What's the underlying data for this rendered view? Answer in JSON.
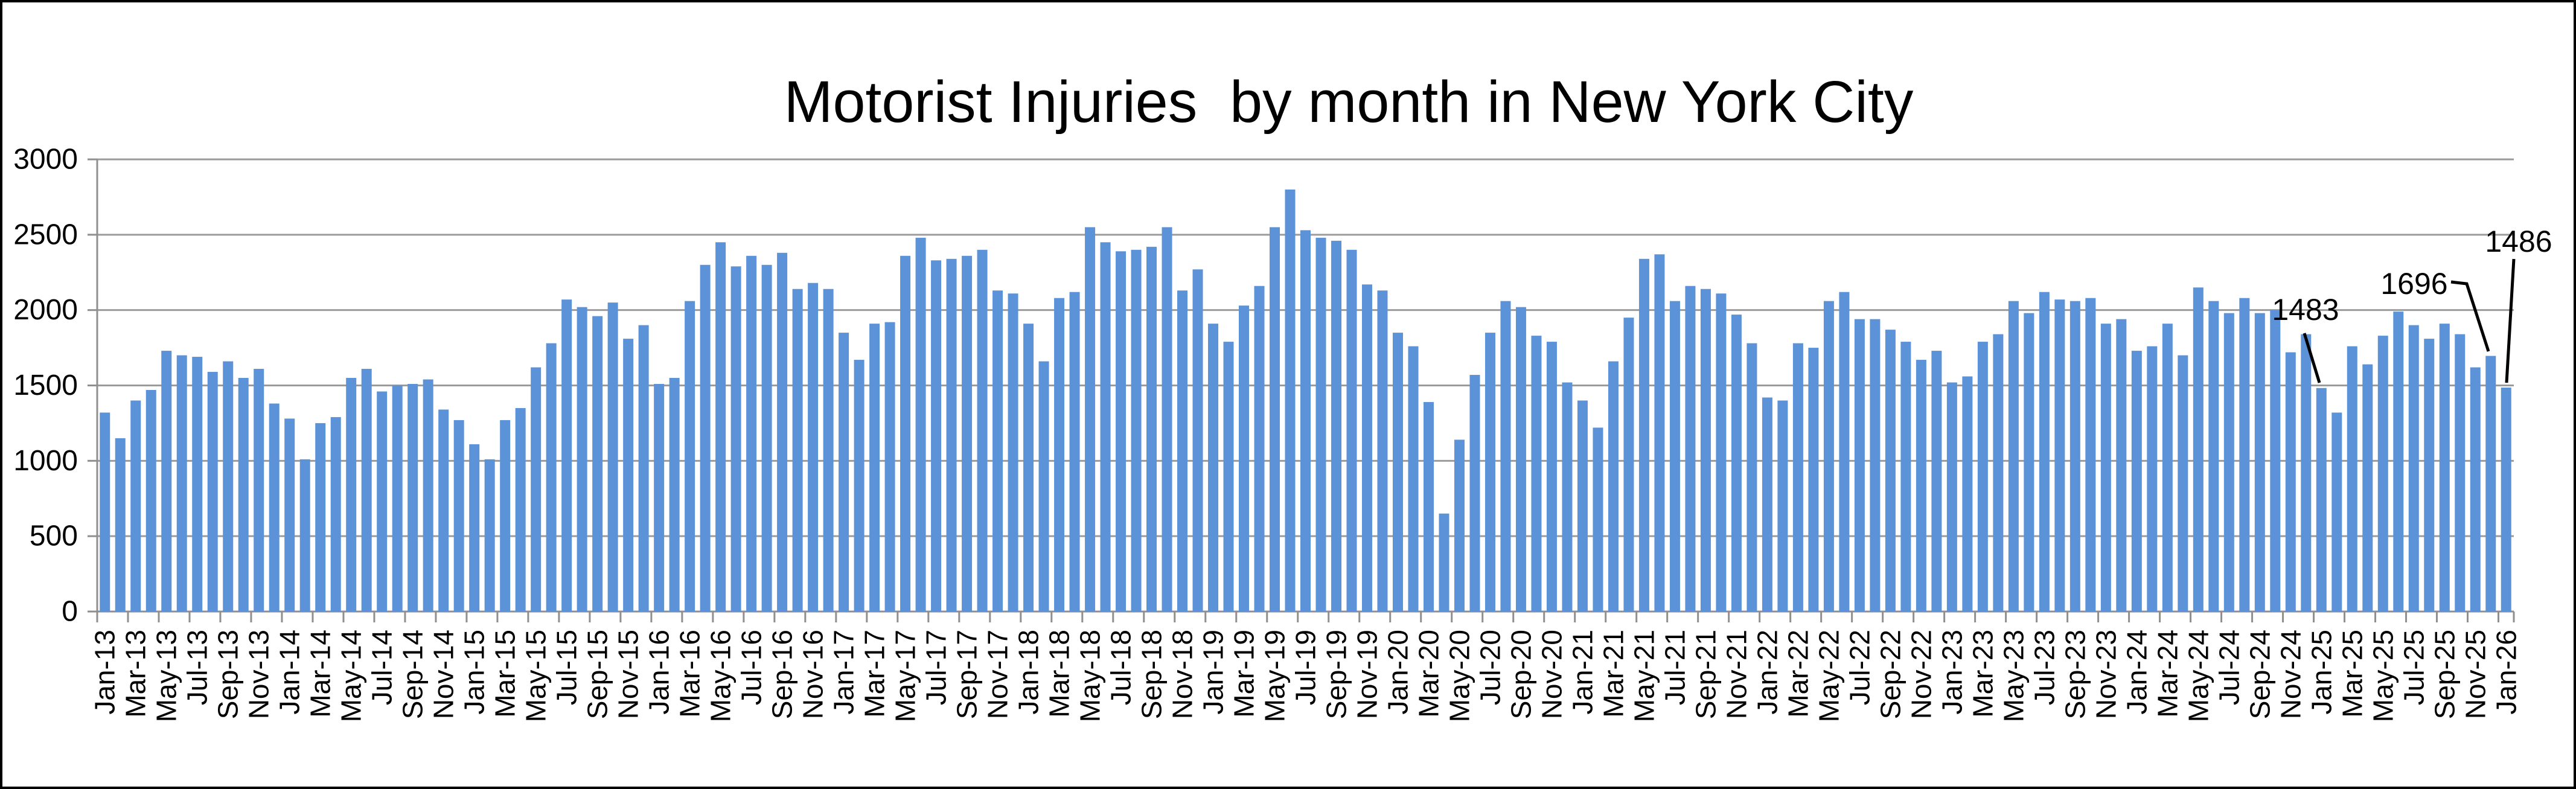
{
  "page": {
    "background": "#ffffff",
    "border_color": "#000000"
  },
  "chart_data": {
    "type": "bar",
    "title": "Motorist Injuries  by month in New York City",
    "xlabel": "",
    "ylabel": "",
    "ylim": [
      0,
      3000
    ],
    "ytick_step": 500,
    "y_tick_labels": [
      "0",
      "500",
      "1000",
      "1500",
      "2000",
      "2500",
      "3000"
    ],
    "x_label_every": 2,
    "grid": "horizontal-major",
    "legend": "none",
    "colors": {
      "bar": "#5C92D8",
      "gridline": "#9B9B9B",
      "axis": "#8F8F8F",
      "text": "#000000",
      "annotation_line": "#000000"
    },
    "categories": [
      "Jan-13",
      "Feb-13",
      "Mar-13",
      "Apr-13",
      "May-13",
      "Jun-13",
      "Jul-13",
      "Aug-13",
      "Sep-13",
      "Oct-13",
      "Nov-13",
      "Dec-13",
      "Jan-14",
      "Feb-14",
      "Mar-14",
      "Apr-14",
      "May-14",
      "Jun-14",
      "Jul-14",
      "Aug-14",
      "Sep-14",
      "Oct-14",
      "Nov-14",
      "Dec-14",
      "Jan-15",
      "Feb-15",
      "Mar-15",
      "Apr-15",
      "May-15",
      "Jun-15",
      "Jul-15",
      "Aug-15",
      "Sep-15",
      "Oct-15",
      "Nov-15",
      "Dec-15",
      "Jan-16",
      "Feb-16",
      "Mar-16",
      "Apr-16",
      "May-16",
      "Jun-16",
      "Jul-16",
      "Aug-16",
      "Sep-16",
      "Oct-16",
      "Nov-16",
      "Dec-16",
      "Jan-17",
      "Feb-17",
      "Mar-17",
      "Apr-17",
      "May-17",
      "Jun-17",
      "Jul-17",
      "Aug-17",
      "Sep-17",
      "Oct-17",
      "Nov-17",
      "Dec-17",
      "Jan-18",
      "Feb-18",
      "Mar-18",
      "Apr-18",
      "May-18",
      "Jun-18",
      "Jul-18",
      "Aug-18",
      "Sep-18",
      "Oct-18",
      "Nov-18",
      "Dec-18",
      "Jan-19",
      "Feb-19",
      "Mar-19",
      "Apr-19",
      "May-19",
      "Jun-19",
      "Jul-19",
      "Aug-19",
      "Sep-19",
      "Oct-19",
      "Nov-19",
      "Dec-19",
      "Jan-20",
      "Feb-20",
      "Mar-20",
      "Apr-20",
      "May-20",
      "Jun-20",
      "Jul-20",
      "Aug-20",
      "Sep-20",
      "Oct-20",
      "Nov-20",
      "Dec-20",
      "Jan-21",
      "Feb-21",
      "Mar-21",
      "Apr-21",
      "May-21",
      "Jun-21",
      "Jul-21",
      "Aug-21",
      "Sep-21",
      "Oct-21",
      "Nov-21",
      "Dec-21",
      "Jan-22",
      "Feb-22",
      "Mar-22",
      "Apr-22",
      "May-22",
      "Jun-22",
      "Jul-22",
      "Aug-22",
      "Sep-22",
      "Oct-22",
      "Nov-22",
      "Dec-22",
      "Jan-23",
      "Feb-23",
      "Mar-23",
      "Apr-23",
      "May-23",
      "Jun-23",
      "Jul-23",
      "Aug-23",
      "Sep-23",
      "Oct-23",
      "Nov-23",
      "Dec-23",
      "Jan-24",
      "Feb-24",
      "Mar-24",
      "Apr-24",
      "May-24",
      "Jun-24",
      "Jul-24",
      "Aug-24",
      "Sep-24",
      "Oct-24",
      "Nov-24",
      "Dec-24",
      "Jan-25",
      "Feb-25",
      "Mar-25",
      "Apr-25",
      "May-25",
      "Jun-25",
      "Jul-25",
      "Aug-25",
      "Sep-25",
      "Oct-25",
      "Nov-25",
      "Dec-25",
      "Jan-26"
    ],
    "values": [
      1320,
      1150,
      1400,
      1470,
      1730,
      1700,
      1690,
      1590,
      1660,
      1550,
      1610,
      1380,
      1280,
      1010,
      1250,
      1290,
      1550,
      1610,
      1460,
      1500,
      1510,
      1540,
      1340,
      1270,
      1110,
      1010,
      1270,
      1350,
      1620,
      1780,
      2070,
      2020,
      1960,
      2050,
      1810,
      1900,
      1510,
      1550,
      2060,
      2300,
      2450,
      2290,
      2360,
      2300,
      2380,
      2140,
      2180,
      2140,
      1850,
      1670,
      1910,
      1920,
      2360,
      2480,
      2330,
      2340,
      2360,
      2400,
      2130,
      2110,
      1910,
      1660,
      2080,
      2120,
      2550,
      2450,
      2390,
      2400,
      2420,
      2550,
      2130,
      2270,
      1910,
      1790,
      2030,
      2160,
      2550,
      2800,
      2530,
      2480,
      2460,
      2400,
      2170,
      2130,
      1850,
      1760,
      1390,
      650,
      1140,
      1570,
      1850,
      2060,
      2020,
      1830,
      1790,
      1520,
      1400,
      1220,
      1660,
      1950,
      2340,
      2370,
      2060,
      2160,
      2140,
      2110,
      1970,
      1780,
      1420,
      1400,
      1780,
      1750,
      2060,
      2120,
      1940,
      1940,
      1870,
      1790,
      1670,
      1730,
      1520,
      1560,
      1790,
      1840,
      2060,
      1980,
      2120,
      2070,
      2060,
      2080,
      1910,
      1940,
      1730,
      1760,
      1910,
      1700,
      2150,
      2060,
      1980,
      2080,
      1980,
      2000,
      1720,
      1840,
      1483,
      1320,
      1760,
      1640,
      1830,
      1990,
      1900,
      1810,
      1910,
      1840,
      1620,
      1696,
      1486
    ],
    "x_tick_labels": [
      "Jan-13",
      "Mar-13",
      "May-13",
      "Jul-13",
      "Sep-13",
      "Nov-13",
      "Jan-14",
      "Mar-14",
      "May-14",
      "Jul-14",
      "Sep-14",
      "Nov-14",
      "Jan-15",
      "Mar-15",
      "May-15",
      "Jul-15",
      "Sep-15",
      "Nov-15",
      "Jan-16",
      "Mar-16",
      "May-16",
      "Jul-16",
      "Sep-16",
      "Nov-16",
      "Jan-17",
      "Mar-17",
      "May-17",
      "Jul-17",
      "Sep-17",
      "Nov-17",
      "Jan-18",
      "Mar-18",
      "May-18",
      "Jul-18",
      "Sep-18",
      "Nov-18",
      "Jan-19",
      "Mar-19",
      "May-19",
      "Jul-19",
      "Sep-19",
      "Nov-19",
      "Jan-20",
      "Mar-20",
      "May-20",
      "Jul-20",
      "Sep-20",
      "Nov-20",
      "Jan-21",
      "Mar-21",
      "May-21",
      "Jul-21",
      "Sep-21",
      "Nov-21",
      "Jan-22",
      "Mar-22",
      "May-22",
      "Jul-22",
      "Sep-22",
      "Nov-22",
      "Jan-23",
      "Mar-23",
      "May-23",
      "Jul-23",
      "Sep-23",
      "Nov-23",
      "Jan-24",
      "Mar-24",
      "May-24",
      "Jul-24",
      "Sep-24",
      "Nov-24",
      "Jan-25",
      "Mar-25",
      "May-25",
      "Jul-25",
      "Sep-25",
      "Nov-25",
      "Jan-26"
    ],
    "annotations": [
      {
        "label": "1483",
        "month": "Jan-25",
        "index": 144,
        "text_x": 3815,
        "text_y": 509,
        "points": [
          [
            3813,
            548
          ],
          [
            3838,
            630
          ]
        ]
      },
      {
        "label": "1696",
        "month": "Dec-25",
        "index": 155,
        "text_x": 3995,
        "text_y": 466,
        "points": [
          [
            4056,
            463
          ],
          [
            4082,
            466
          ],
          [
            4118,
            578
          ]
        ]
      },
      {
        "label": "1486",
        "month": "Jan-26",
        "index": 156,
        "text_x": 4168,
        "text_y": 396,
        "points": [
          [
            4160,
            425
          ],
          [
            4148,
            630
          ]
        ]
      }
    ]
  }
}
